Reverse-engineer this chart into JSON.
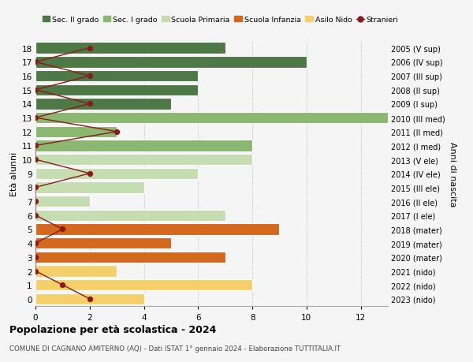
{
  "ages": [
    18,
    17,
    16,
    15,
    14,
    13,
    12,
    11,
    10,
    9,
    8,
    7,
    6,
    5,
    4,
    3,
    2,
    1,
    0
  ],
  "right_labels": [
    "2005 (V sup)",
    "2006 (IV sup)",
    "2007 (III sup)",
    "2008 (II sup)",
    "2009 (I sup)",
    "2010 (III med)",
    "2011 (II med)",
    "2012 (I med)",
    "2013 (V ele)",
    "2014 (IV ele)",
    "2015 (III ele)",
    "2016 (II ele)",
    "2017 (I ele)",
    "2018 (mater)",
    "2019 (mater)",
    "2020 (mater)",
    "2021 (nido)",
    "2022 (nido)",
    "2023 (nido)"
  ],
  "bar_values": [
    7,
    10,
    6,
    6,
    5,
    13,
    3,
    8,
    8,
    6,
    4,
    2,
    7,
    9,
    5,
    7,
    3,
    8,
    4
  ],
  "stranieri_values": [
    2,
    0,
    2,
    0,
    2,
    0,
    3,
    0,
    0,
    2,
    0,
    0,
    0,
    1,
    0,
    0,
    0,
    1,
    2
  ],
  "bar_colors": [
    "#4e7845",
    "#4e7845",
    "#4e7845",
    "#4e7845",
    "#4e7845",
    "#8ab870",
    "#8ab870",
    "#8ab870",
    "#c5ddb0",
    "#c5ddb0",
    "#c5ddb0",
    "#c5ddb0",
    "#c5ddb0",
    "#d2691e",
    "#d2691e",
    "#d2691e",
    "#f5d06a",
    "#f5d06a",
    "#f5d06a"
  ],
  "legend_labels": [
    "Sec. II grado",
    "Sec. I grado",
    "Scuola Primaria",
    "Scuola Infanzia",
    "Asilo Nido",
    "Stranieri"
  ],
  "legend_colors": [
    "#4e7845",
    "#8ab870",
    "#c5ddb0",
    "#d2691e",
    "#f5d06a",
    "#8b0000"
  ],
  "title": "Popolazione per età scolastica - 2024",
  "subtitle": "COMUNE DI CAGNANO AMITERNO (AQ) - Dati ISTAT 1° gennaio 2024 - Elaborazione TUTTITALIA.IT",
  "ylabel_left": "Età alunni",
  "ylabel_right": "Anni di nascita",
  "xlim": [
    0,
    13
  ],
  "background_color": "#f5f5f5",
  "bar_edge_color": "white",
  "stranieri_color": "#8b1a1a",
  "grid_color": "#cccccc"
}
